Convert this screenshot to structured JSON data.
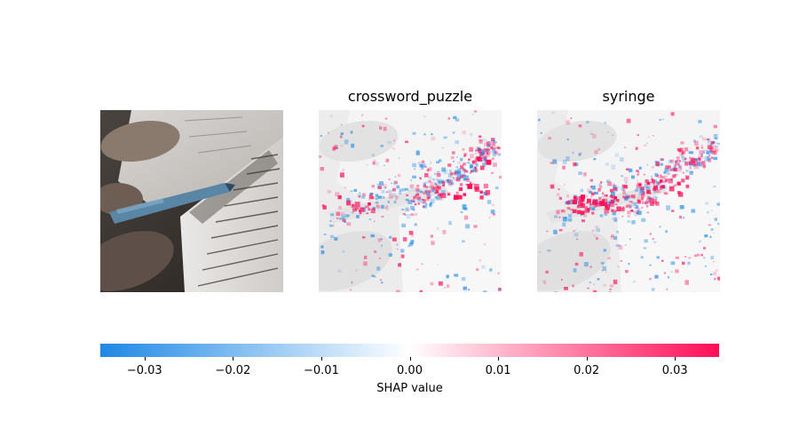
{
  "chart_data": {
    "type": "heatmap",
    "panels": [
      {
        "role": "input-image",
        "title": ""
      },
      {
        "role": "shap-map",
        "title": "crossword_puzzle"
      },
      {
        "role": "shap-map",
        "title": "syringe"
      }
    ],
    "colorbar": {
      "label": "SHAP value",
      "range": [
        -0.035,
        0.035
      ],
      "ticks": [
        -0.03,
        -0.02,
        -0.01,
        0.0,
        0.01,
        0.02,
        0.03
      ],
      "tick_labels": [
        "−0.03",
        "−0.02",
        "−0.01",
        "0.00",
        "0.01",
        "0.02",
        "0.03"
      ],
      "negative_color": "#1e88e5",
      "positive_color": "#ff0d57",
      "orientation": "horizontal"
    }
  }
}
